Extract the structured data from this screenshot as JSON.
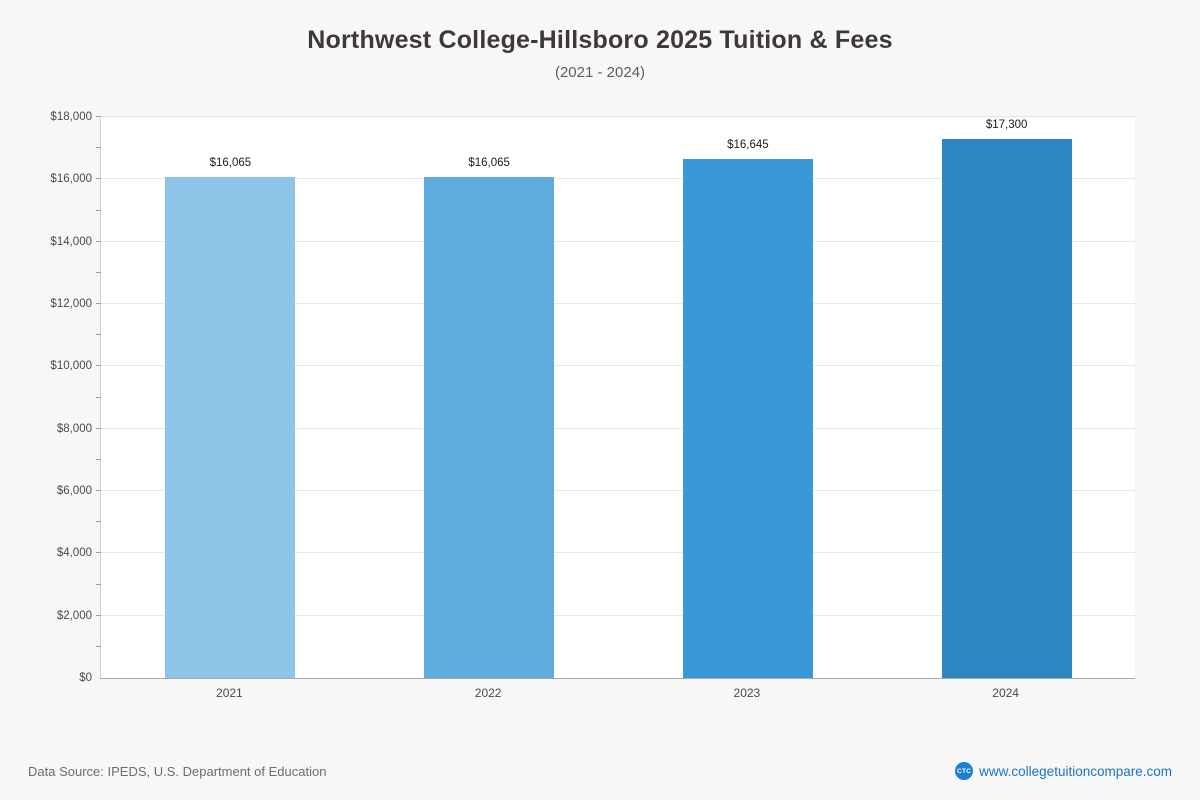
{
  "page": {
    "title": "Northwest College-Hillsboro 2025 Tuition & Fees",
    "subtitle": "(2021 - 2024)"
  },
  "chart_data": {
    "type": "bar",
    "title": "Northwest College-Hillsboro 2025 Tuition & Fees",
    "subtitle": "(2021 - 2024)",
    "categories": [
      "2021",
      "2022",
      "2023",
      "2024"
    ],
    "values": [
      16065,
      16065,
      16645,
      17300
    ],
    "value_labels": [
      "$16,065",
      "$16,065",
      "$16,645",
      "$17,300"
    ],
    "bar_colors": [
      "#8ec4e8",
      "#5fabde",
      "#3998d8",
      "#2d86c0"
    ],
    "xlabel": "",
    "ylabel": "",
    "ylim": [
      0,
      18000
    ],
    "ytick_step": 2000,
    "ytick_minor_step": 1000,
    "ytick_labels": [
      "$0",
      "$2,000",
      "$4,000",
      "$6,000",
      "$8,000",
      "$10,000",
      "$12,000",
      "$14,000",
      "$16,000",
      "$18,000"
    ],
    "grid": true,
    "legend_position": "none"
  },
  "footer": {
    "source": "Data Source: IPEDS, U.S. Department of Education",
    "site": "www.collegetuitioncompare.com",
    "icon_text": "CTC"
  }
}
